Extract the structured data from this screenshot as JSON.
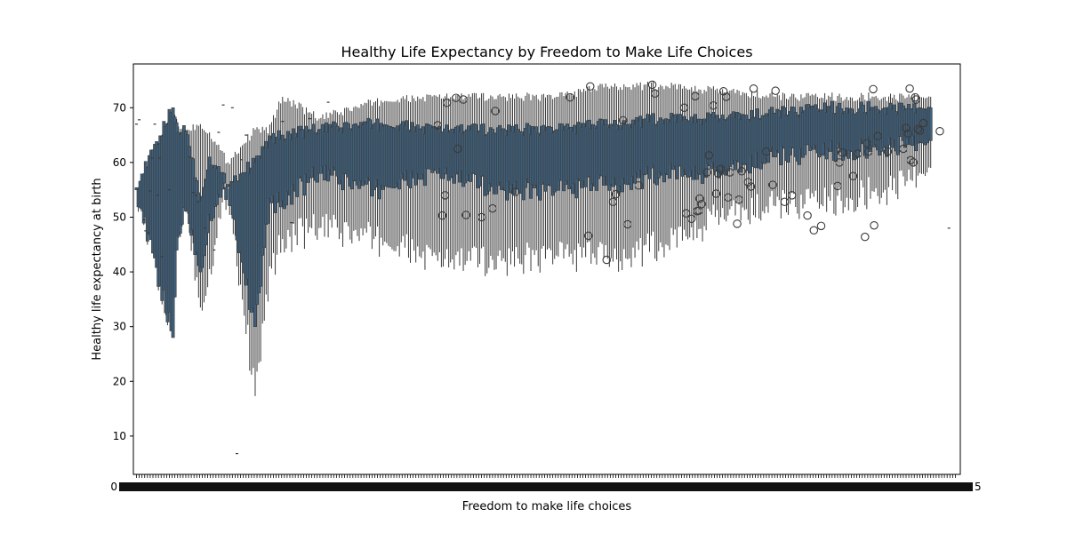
{
  "chart_data": {
    "type": "box",
    "title": "Healthy Life Expectancy by Freedom to Make Life Choices",
    "xlabel": "Freedom to make life choices",
    "ylabel": "Healthy life expectancy at birth",
    "ylim": [
      3,
      78
    ],
    "yticks": [
      10,
      20,
      30,
      40,
      50,
      60,
      70
    ],
    "ytick_labels": [
      "10",
      "20",
      "30",
      "40",
      "50",
      "60",
      "70"
    ],
    "x_category_count": 900,
    "x_axis_note": "one box per distinct freedom value; x tick labels overlap into an illegible band",
    "x_tick_labels_visible": [
      "0",
      "5"
    ],
    "grid": false,
    "box_color": "#3f5f7a",
    "line_color": "#3a3a3a",
    "outlier_marker": "open-circle",
    "boxes": [
      {
        "i": 0,
        "q1": 55.0,
        "q3": 55.4,
        "wlo": 55.0,
        "whi": 55.4
      },
      {
        "i": 40,
        "q1": 28.0,
        "q3": 70.0,
        "wlo": 28.0,
        "whi": 70.0
      },
      {
        "i": 45,
        "q1": 47.0,
        "q3": 66.0,
        "wlo": 47.0,
        "whi": 67.0
      },
      {
        "i": 55,
        "q1": 52.0,
        "q3": 66.0,
        "wlo": 52.0,
        "whi": 66.0
      },
      {
        "i": 70,
        "q1": 40.0,
        "q3": 53.0,
        "wlo": 33.5,
        "whi": 67.0
      },
      {
        "i": 80,
        "q1": 50.5,
        "q3": 61.0,
        "wlo": 40.5,
        "whi": 65.5
      },
      {
        "i": 100,
        "q1": 55.5,
        "q3": 56.0,
        "wlo": 55.5,
        "whi": 60.0
      },
      {
        "i": 130,
        "q1": 30.0,
        "q3": 60.0,
        "wlo": 17.3,
        "whi": 66.0
      },
      {
        "i": 145,
        "q1": 52.0,
        "q3": 64.0,
        "wlo": 38.5,
        "whi": 66.0
      },
      {
        "i": 160,
        "q1": 53.0,
        "q3": 65.0,
        "wlo": 46.0,
        "whi": 72.0
      },
      {
        "i": 200,
        "q1": 58.0,
        "q3": 66.0,
        "wlo": 48.0,
        "whi": 68.0
      },
      {
        "i": 260,
        "q1": 55.0,
        "q3": 67.0,
        "wlo": 46.0,
        "whi": 71.0
      },
      {
        "i": 330,
        "q1": 58.0,
        "q3": 66.0,
        "wlo": 42.0,
        "whi": 72.0
      },
      {
        "i": 400,
        "q1": 55.0,
        "q3": 66.0,
        "wlo": 42.0,
        "whi": 72.0
      },
      {
        "i": 460,
        "q1": 55.0,
        "q3": 66.0,
        "wlo": 43.0,
        "whi": 72.0
      },
      {
        "i": 520,
        "q1": 56.0,
        "q3": 67.0,
        "wlo": 42.5,
        "whi": 74.0
      },
      {
        "i": 580,
        "q1": 58.0,
        "q3": 68.0,
        "wlo": 45.0,
        "whi": 74.0
      },
      {
        "i": 640,
        "q1": 58.0,
        "q3": 68.0,
        "wlo": 50.0,
        "whi": 73.0
      },
      {
        "i": 700,
        "q1": 61.0,
        "q3": 69.0,
        "wlo": 52.0,
        "whi": 72.0
      },
      {
        "i": 760,
        "q1": 62.0,
        "q3": 70.0,
        "wlo": 53.0,
        "whi": 72.0
      },
      {
        "i": 820,
        "q1": 63.0,
        "q3": 70.0,
        "wlo": 55.0,
        "whi": 72.0
      },
      {
        "i": 870,
        "q1": 64.0,
        "q3": 70.0,
        "wlo": 59.0,
        "whi": 72.0
      },
      {
        "i": 890,
        "q1": 48.0,
        "q3": 48.0,
        "wlo": 48.0,
        "whi": 48.0
      }
    ],
    "flat_marks": [
      {
        "i": 0,
        "y": 67.0
      },
      {
        "i": 3,
        "y": 67.8
      },
      {
        "i": 6,
        "y": 51.2
      },
      {
        "i": 8,
        "y": 49.5
      },
      {
        "i": 10,
        "y": 47.5
      },
      {
        "i": 13,
        "y": 47.2
      },
      {
        "i": 15,
        "y": 54.8
      },
      {
        "i": 17,
        "y": 60.8
      },
      {
        "i": 20,
        "y": 67.0
      },
      {
        "i": 23,
        "y": 54.0
      },
      {
        "i": 25,
        "y": 60.8
      },
      {
        "i": 28,
        "y": 42.8
      },
      {
        "i": 33,
        "y": 67.0
      },
      {
        "i": 36,
        "y": 55.0
      },
      {
        "i": 58,
        "y": 61.0
      },
      {
        "i": 62,
        "y": 54.5
      },
      {
        "i": 65,
        "y": 54.0
      },
      {
        "i": 67,
        "y": 52.8
      },
      {
        "i": 75,
        "y": 48.0
      },
      {
        "i": 85,
        "y": 44.0
      },
      {
        "i": 90,
        "y": 65.5
      },
      {
        "i": 95,
        "y": 70.5
      },
      {
        "i": 105,
        "y": 70.0
      },
      {
        "i": 110,
        "y": 6.8
      },
      {
        "i": 115,
        "y": 60.5
      },
      {
        "i": 120,
        "y": 65.0
      },
      {
        "i": 160,
        "y": 67.5
      },
      {
        "i": 170,
        "y": 49.0
      },
      {
        "i": 180,
        "y": 66.0
      },
      {
        "i": 190,
        "y": 68.0
      },
      {
        "i": 210,
        "y": 71.0
      }
    ],
    "outliers": [
      {
        "i": 330,
        "y": 66.8
      },
      {
        "i": 335,
        "y": 50.3
      },
      {
        "i": 338,
        "y": 54.0
      },
      {
        "i": 340,
        "y": 70.9
      },
      {
        "i": 350,
        "y": 71.8
      },
      {
        "i": 352,
        "y": 62.5
      },
      {
        "i": 358,
        "y": 71.5
      },
      {
        "i": 361,
        "y": 50.4
      },
      {
        "i": 378,
        "y": 50.0
      },
      {
        "i": 390,
        "y": 51.6
      },
      {
        "i": 393,
        "y": 69.4
      },
      {
        "i": 415,
        "y": 54.6
      },
      {
        "i": 475,
        "y": 71.9
      },
      {
        "i": 495,
        "y": 46.6
      },
      {
        "i": 497,
        "y": 73.9
      },
      {
        "i": 515,
        "y": 42.2
      },
      {
        "i": 522,
        "y": 52.8
      },
      {
        "i": 525,
        "y": 54.2
      },
      {
        "i": 533,
        "y": 67.7
      },
      {
        "i": 538,
        "y": 48.7
      },
      {
        "i": 550,
        "y": 55.8
      },
      {
        "i": 565,
        "y": 74.2
      },
      {
        "i": 568,
        "y": 72.6
      },
      {
        "i": 600,
        "y": 70.0
      },
      {
        "i": 602,
        "y": 50.7
      },
      {
        "i": 608,
        "y": 49.7
      },
      {
        "i": 612,
        "y": 72.1
      },
      {
        "i": 614,
        "y": 51.1
      },
      {
        "i": 616,
        "y": 51.2
      },
      {
        "i": 617,
        "y": 53.4
      },
      {
        "i": 619,
        "y": 52.4
      },
      {
        "i": 625,
        "y": 58.2
      },
      {
        "i": 627,
        "y": 61.3
      },
      {
        "i": 632,
        "y": 70.4
      },
      {
        "i": 635,
        "y": 54.3
      },
      {
        "i": 637,
        "y": 58.0
      },
      {
        "i": 640,
        "y": 58.8
      },
      {
        "i": 643,
        "y": 73.0
      },
      {
        "i": 646,
        "y": 72.0
      },
      {
        "i": 648,
        "y": 53.6
      },
      {
        "i": 650,
        "y": 58.2
      },
      {
        "i": 658,
        "y": 48.8
      },
      {
        "i": 660,
        "y": 53.2
      },
      {
        "i": 663,
        "y": 58.4
      },
      {
        "i": 670,
        "y": 56.4
      },
      {
        "i": 673,
        "y": 55.6
      },
      {
        "i": 676,
        "y": 73.5
      },
      {
        "i": 690,
        "y": 62.0
      },
      {
        "i": 697,
        "y": 55.9
      },
      {
        "i": 700,
        "y": 73.1
      },
      {
        "i": 710,
        "y": 52.8
      },
      {
        "i": 718,
        "y": 54.0
      },
      {
        "i": 735,
        "y": 50.3
      },
      {
        "i": 742,
        "y": 47.6
      },
      {
        "i": 750,
        "y": 48.4
      },
      {
        "i": 768,
        "y": 55.7
      },
      {
        "i": 770,
        "y": 60.0
      },
      {
        "i": 773,
        "y": 61.8
      },
      {
        "i": 785,
        "y": 57.5
      },
      {
        "i": 790,
        "y": 61.6
      },
      {
        "i": 798,
        "y": 46.4
      },
      {
        "i": 800,
        "y": 63.5
      },
      {
        "i": 802,
        "y": 62.0
      },
      {
        "i": 807,
        "y": 73.4
      },
      {
        "i": 808,
        "y": 48.5
      },
      {
        "i": 812,
        "y": 64.8
      },
      {
        "i": 823,
        "y": 62.0
      },
      {
        "i": 840,
        "y": 62.5
      },
      {
        "i": 843,
        "y": 66.3
      },
      {
        "i": 845,
        "y": 65.3
      },
      {
        "i": 847,
        "y": 73.5
      },
      {
        "i": 848,
        "y": 60.4
      },
      {
        "i": 851,
        "y": 60.0
      },
      {
        "i": 853,
        "y": 71.9
      },
      {
        "i": 854,
        "y": 71.5
      },
      {
        "i": 856,
        "y": 66.1
      },
      {
        "i": 858,
        "y": 65.8
      },
      {
        "i": 862,
        "y": 67.2
      },
      {
        "i": 880,
        "y": 65.7
      }
    ]
  }
}
